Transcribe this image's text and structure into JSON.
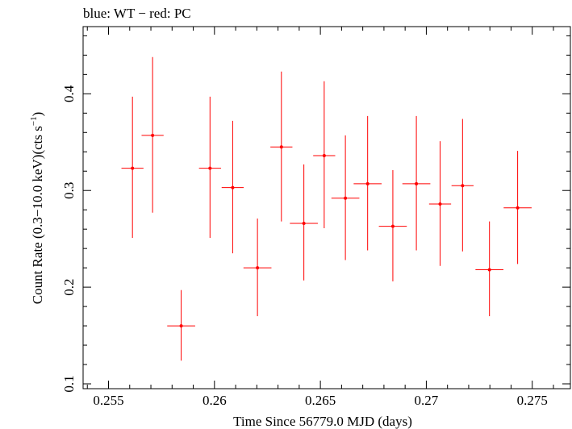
{
  "chart_data": {
    "type": "scatter",
    "title": "blue: WT − red: PC",
    "xlabel": "Time Since 56779.0 MJD (days)",
    "ylabel_main": "Count Rate (0.3−10.0 keV)(cts s",
    "ylabel_sup": "−1",
    "ylabel_close": ")",
    "xlim": [
      0.2538,
      0.2768
    ],
    "ylim": [
      0.095,
      0.4695
    ],
    "xticks": [
      {
        "value": 0.255,
        "label": "0.255"
      },
      {
        "value": 0.26,
        "label": "0.26"
      },
      {
        "value": 0.265,
        "label": "0.265"
      },
      {
        "value": 0.27,
        "label": "0.27"
      },
      {
        "value": 0.275,
        "label": "0.275"
      }
    ],
    "yticks": [
      {
        "value": 0.1,
        "label": "0.1"
      },
      {
        "value": 0.2,
        "label": "0.2"
      },
      {
        "value": 0.3,
        "label": "0.3"
      },
      {
        "value": 0.4,
        "label": "0.4"
      }
    ],
    "series": [
      {
        "color": "#ff0000",
        "points": [
          {
            "x": 0.25613,
            "xerr": 0.00052,
            "y": 0.323,
            "ylo": 0.251,
            "yhi": 0.397
          },
          {
            "x": 0.25708,
            "xerr": 0.00052,
            "y": 0.357,
            "ylo": 0.277,
            "yhi": 0.438
          },
          {
            "x": 0.25843,
            "xerr": 0.00066,
            "y": 0.16,
            "ylo": 0.124,
            "yhi": 0.197
          },
          {
            "x": 0.25979,
            "xerr": 0.00052,
            "y": 0.323,
            "ylo": 0.251,
            "yhi": 0.397
          },
          {
            "x": 0.26086,
            "xerr": 0.00052,
            "y": 0.303,
            "ylo": 0.235,
            "yhi": 0.372
          },
          {
            "x": 0.26203,
            "xerr": 0.00066,
            "y": 0.22,
            "ylo": 0.17,
            "yhi": 0.271
          },
          {
            "x": 0.26316,
            "xerr": 0.00052,
            "y": 0.345,
            "ylo": 0.268,
            "yhi": 0.423
          },
          {
            "x": 0.26422,
            "xerr": 0.00066,
            "y": 0.266,
            "ylo": 0.207,
            "yhi": 0.327
          },
          {
            "x": 0.26518,
            "xerr": 0.00052,
            "y": 0.336,
            "ylo": 0.261,
            "yhi": 0.413
          },
          {
            "x": 0.26618,
            "xerr": 0.00066,
            "y": 0.292,
            "ylo": 0.228,
            "yhi": 0.357
          },
          {
            "x": 0.26723,
            "xerr": 0.00066,
            "y": 0.307,
            "ylo": 0.238,
            "yhi": 0.377
          },
          {
            "x": 0.26842,
            "xerr": 0.00066,
            "y": 0.263,
            "ylo": 0.206,
            "yhi": 0.321
          },
          {
            "x": 0.26953,
            "xerr": 0.00066,
            "y": 0.307,
            "ylo": 0.238,
            "yhi": 0.377
          },
          {
            "x": 0.27065,
            "xerr": 0.00052,
            "y": 0.286,
            "ylo": 0.222,
            "yhi": 0.351
          },
          {
            "x": 0.27171,
            "xerr": 0.00052,
            "y": 0.305,
            "ylo": 0.237,
            "yhi": 0.374
          },
          {
            "x": 0.27298,
            "xerr": 0.00066,
            "y": 0.218,
            "ylo": 0.17,
            "yhi": 0.268
          },
          {
            "x": 0.27431,
            "xerr": 0.00066,
            "y": 0.282,
            "ylo": 0.224,
            "yhi": 0.341
          }
        ]
      }
    ]
  }
}
